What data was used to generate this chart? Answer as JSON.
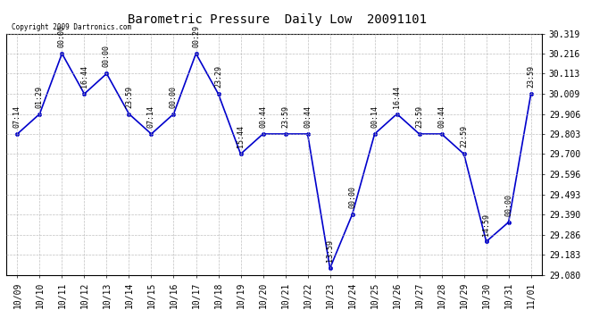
{
  "title": "Barometric Pressure  Daily Low  20091101",
  "copyright": "Copyright 2009 Dartronics.com",
  "line_color": "#0000CC",
  "marker_color": "#0000CC",
  "background_color": "#ffffff",
  "grid_color": "#b0b0b0",
  "ylim": [
    29.08,
    30.319
  ],
  "yticks": [
    29.08,
    29.183,
    29.286,
    29.39,
    29.493,
    29.596,
    29.7,
    29.803,
    29.906,
    30.009,
    30.113,
    30.216,
    30.319
  ],
  "data_points": [
    {
      "x": 0,
      "date": "10/09",
      "time": "07:14",
      "value": 29.803
    },
    {
      "x": 1,
      "date": "10/10",
      "time": "01:29",
      "value": 29.906
    },
    {
      "x": 2,
      "date": "10/11",
      "time": "00:00",
      "value": 30.216
    },
    {
      "x": 3,
      "date": "10/12",
      "time": "16:44",
      "value": 30.009
    },
    {
      "x": 4,
      "date": "10/13",
      "time": "00:00",
      "value": 30.113
    },
    {
      "x": 5,
      "date": "10/14",
      "time": "23:59",
      "value": 29.906
    },
    {
      "x": 6,
      "date": "10/15",
      "time": "07:14",
      "value": 29.803
    },
    {
      "x": 7,
      "date": "10/16",
      "time": "00:00",
      "value": 29.906
    },
    {
      "x": 8,
      "date": "10/17",
      "time": "00:29",
      "value": 30.216
    },
    {
      "x": 9,
      "date": "10/18",
      "time": "23:29",
      "value": 30.009
    },
    {
      "x": 10,
      "date": "10/19",
      "time": "15:44",
      "value": 29.7
    },
    {
      "x": 11,
      "date": "10/20",
      "time": "00:44",
      "value": 29.803
    },
    {
      "x": 12,
      "date": "10/21",
      "time": "23:59",
      "value": 29.803
    },
    {
      "x": 13,
      "date": "10/22",
      "time": "00:44",
      "value": 29.803
    },
    {
      "x": 14,
      "date": "10/23",
      "time": "13:59",
      "value": 29.113
    },
    {
      "x": 15,
      "date": "10/24",
      "time": "00:00",
      "value": 29.39
    },
    {
      "x": 16,
      "date": "10/25",
      "time": "00:14",
      "value": 29.803
    },
    {
      "x": 17,
      "date": "10/26",
      "time": "16:44",
      "value": 29.906
    },
    {
      "x": 18,
      "date": "10/27",
      "time": "23:59",
      "value": 29.803
    },
    {
      "x": 19,
      "date": "10/28",
      "time": "00:44",
      "value": 29.803
    },
    {
      "x": 20,
      "date": "10/29",
      "time": "22:59",
      "value": 29.7
    },
    {
      "x": 21,
      "date": "10/30",
      "time": "14:59",
      "value": 29.25
    },
    {
      "x": 22,
      "date": "10/31",
      "time": "00:00",
      "value": 29.35
    },
    {
      "x": 23,
      "date": "11/01",
      "time": "23:59",
      "value": 30.009
    }
  ],
  "xlabels": [
    "10/09",
    "10/10",
    "10/11",
    "10/12",
    "10/13",
    "10/14",
    "10/15",
    "10/16",
    "10/17",
    "10/18",
    "10/19",
    "10/20",
    "10/21",
    "10/22",
    "10/23",
    "10/24",
    "10/25",
    "10/26",
    "10/27",
    "10/28",
    "10/29",
    "10/30",
    "10/31",
    "11/01"
  ]
}
